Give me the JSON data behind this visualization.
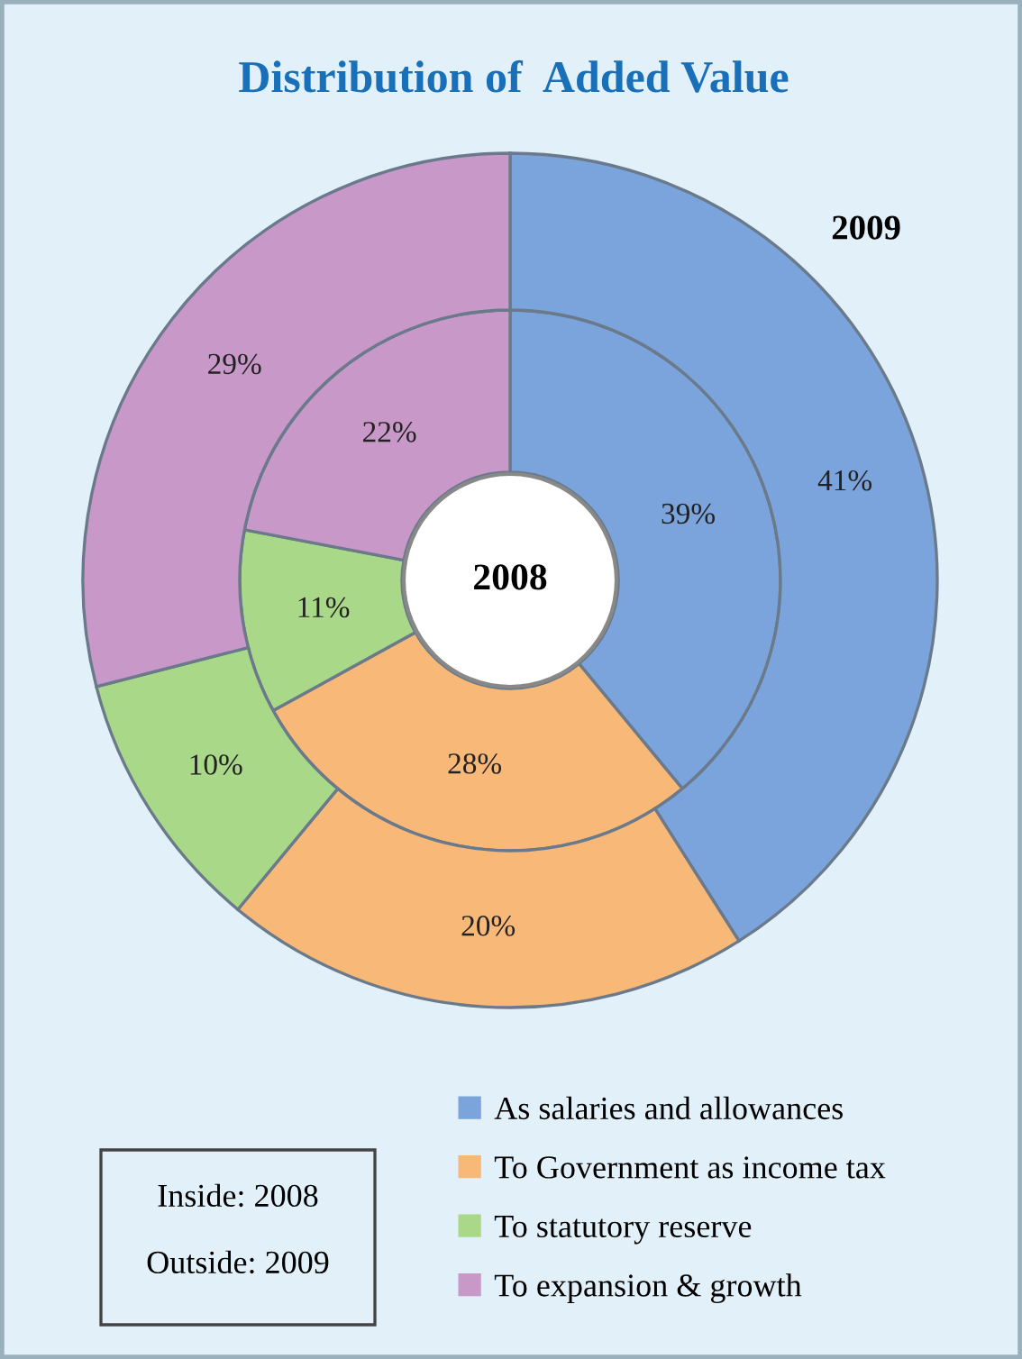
{
  "chart_data": {
    "type": "donut",
    "title": "Distribution of  Added Value",
    "categories": [
      "As salaries and allowances",
      "To Government as income tax",
      "To statutory reserve",
      "To expansion & growth"
    ],
    "colors": [
      "#7ba4dc",
      "#f8b878",
      "#a8d888",
      "#c898c8"
    ],
    "series": [
      {
        "name": "2008",
        "values": [
          39,
          28,
          11,
          22
        ],
        "value_labels": [
          "39%",
          "28%",
          "11%",
          "22%"
        ]
      },
      {
        "name": "2009",
        "values": [
          41,
          20,
          10,
          29
        ],
        "value_labels": [
          "41%",
          "20%",
          "10%",
          "29%"
        ]
      }
    ],
    "legend": "bottom right",
    "annotations": [
      "Inside: 2008",
      "Outside: 2009"
    ]
  }
}
